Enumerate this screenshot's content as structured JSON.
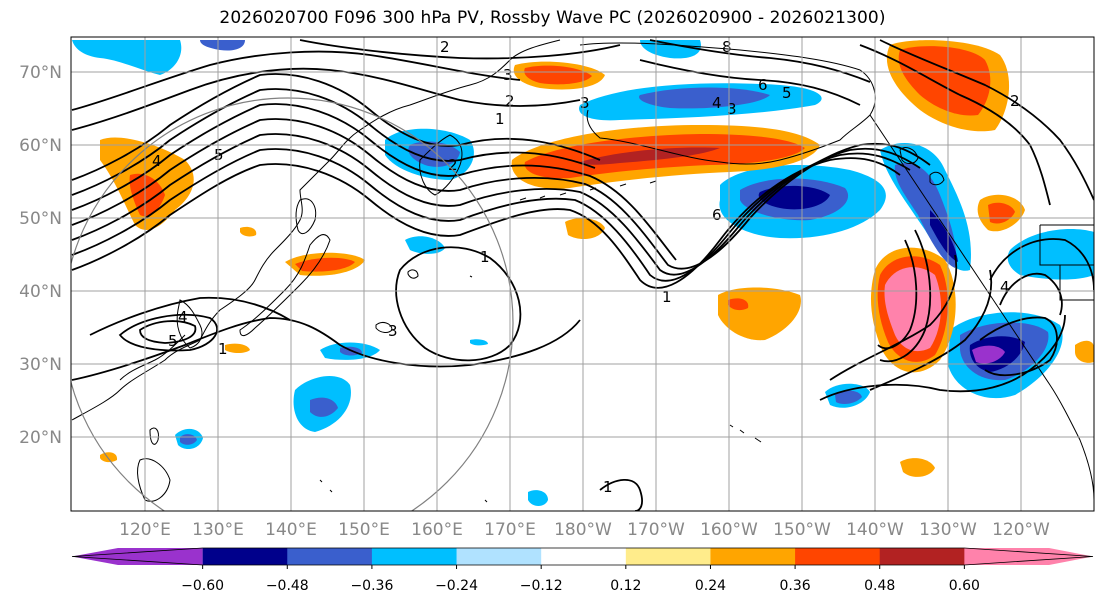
{
  "title": "2026020700 F096 300 hPa PV, Rossby Wave PC (2026020900 - 2026021300)",
  "colors": {
    "land_outline": "#000000",
    "grid": "#a0a0a0",
    "contour": "#000000",
    "circle": "#808080"
  },
  "lat_labels": [
    "70°N",
    "60°N",
    "50°N",
    "40°N",
    "30°N",
    "20°N"
  ],
  "lon_labels": [
    "120°E",
    "130°E",
    "140°E",
    "150°E",
    "160°E",
    "170°E",
    "180°W",
    "170°W",
    "160°W",
    "150°W",
    "140°W",
    "130°W",
    "120°W"
  ],
  "colorbar": {
    "colors": [
      "#9a32cd",
      "#00008b",
      "#3a5fcd",
      "#00bfff",
      "#b0e2ff",
      "#ffffff",
      "#ffec8b",
      "#ffa500",
      "#ff4500",
      "#b22222",
      "#ff82ab"
    ],
    "ticks": [
      "−0.60",
      "−0.48",
      "−0.36",
      "−0.24",
      "−0.12",
      "0.12",
      "0.24",
      "0.36",
      "0.48",
      "0.60"
    ],
    "extend": "both"
  },
  "contour_labels": [
    "2",
    "8",
    "3",
    "2",
    "1",
    "3",
    "6",
    "5",
    "3",
    "4",
    "5",
    "4",
    "3",
    "2",
    "1",
    "6",
    "1",
    "4",
    "5",
    "4",
    "2",
    "1",
    "1"
  ]
}
